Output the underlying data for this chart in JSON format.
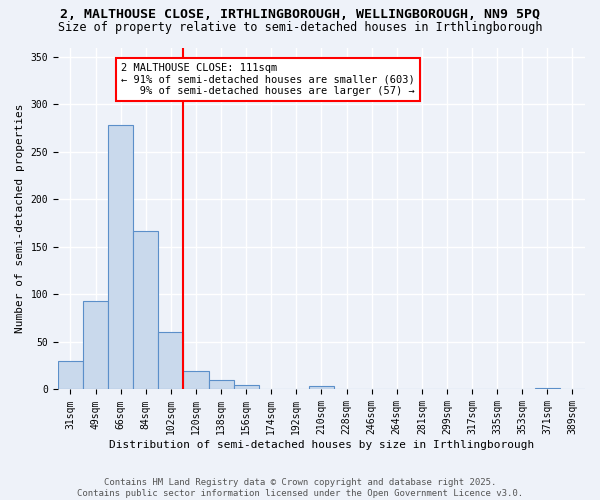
{
  "title1": "2, MALTHOUSE CLOSE, IRTHLINGBOROUGH, WELLINGBOROUGH, NN9 5PQ",
  "title2": "Size of property relative to semi-detached houses in Irthlingborough",
  "xlabel": "Distribution of semi-detached houses by size in Irthlingborough",
  "ylabel": "Number of semi-detached properties",
  "categories": [
    "31sqm",
    "49sqm",
    "66sqm",
    "84sqm",
    "102sqm",
    "120sqm",
    "138sqm",
    "156sqm",
    "174sqm",
    "192sqm",
    "210sqm",
    "228sqm",
    "246sqm",
    "264sqm",
    "281sqm",
    "299sqm",
    "317sqm",
    "335sqm",
    "353sqm",
    "371sqm",
    "389sqm"
  ],
  "values": [
    30,
    93,
    278,
    167,
    60,
    19,
    10,
    5,
    0,
    0,
    4,
    0,
    0,
    0,
    0,
    0,
    0,
    0,
    0,
    2,
    0
  ],
  "bar_color": "#c9d9ec",
  "bar_edge_color": "#5b8fc9",
  "property_line_x": 4.5,
  "annotation_text": "2 MALTHOUSE CLOSE: 111sqm\n← 91% of semi-detached houses are smaller (603)\n   9% of semi-detached houses are larger (57) →",
  "annotation_box_color": "white",
  "annotation_box_edge_color": "red",
  "vline_color": "red",
  "ylim": [
    0,
    360
  ],
  "yticks": [
    0,
    50,
    100,
    150,
    200,
    250,
    300,
    350
  ],
  "background_color": "#eef2f9",
  "footer": "Contains HM Land Registry data © Crown copyright and database right 2025.\nContains public sector information licensed under the Open Government Licence v3.0.",
  "title_fontsize": 9.5,
  "subtitle_fontsize": 8.5,
  "tick_fontsize": 7,
  "label_fontsize": 8,
  "footer_fontsize": 6.5,
  "annotation_fontsize": 7.5
}
